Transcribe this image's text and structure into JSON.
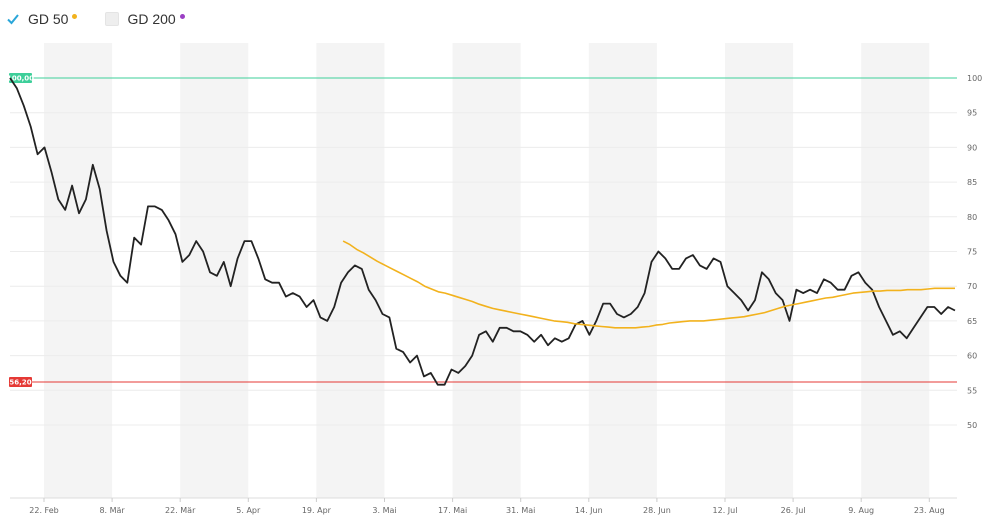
{
  "legend": {
    "items": [
      {
        "label": "GD 50",
        "checked": true,
        "dot_color": "#f2b21d"
      },
      {
        "label": "GD 200",
        "checked": false,
        "dot_color": "#9b3fc4"
      }
    ],
    "check_color": "#2aa6d9"
  },
  "chart_data": {
    "type": "line",
    "ylim": [
      40,
      107
    ],
    "y_ticks": [
      50,
      55,
      60,
      65,
      70,
      75,
      80,
      85,
      90,
      95,
      100
    ],
    "x_tick_labels": [
      "22. Feb",
      "8. Mär",
      "22. Mär",
      "5. Apr",
      "19. Apr",
      "3. Mai",
      "17. Mai",
      "31. Mai",
      "14. Jun",
      "28. Jun",
      "12. Jul",
      "26. Jul",
      "9. Aug",
      "23. Aug"
    ],
    "reference_lines": [
      {
        "value": 100,
        "label": "100,00",
        "color": "#3ecf9a"
      },
      {
        "value": 56.2,
        "label": "56,20",
        "color": "#e53935"
      }
    ],
    "series": [
      {
        "color": "#222222",
        "values": [
          100,
          98.5,
          96,
          93,
          89,
          90,
          86.5,
          82.5,
          81,
          84.5,
          80.5,
          82.5,
          87.5,
          84,
          78,
          73.5,
          71.5,
          70.5,
          77,
          76,
          81.5,
          81.5,
          81,
          79.5,
          77.5,
          73.5,
          74.5,
          76.5,
          75,
          72,
          71.5,
          73.5,
          70,
          74,
          76.5,
          76.5,
          74,
          71,
          70.5,
          70.5,
          68.5,
          69,
          68.5,
          67,
          68,
          65.5,
          65,
          67,
          70.5,
          72,
          73,
          72.5,
          69.5,
          68,
          66,
          65.5,
          61,
          60.5,
          59,
          60,
          57,
          57.5,
          55.8,
          55.8,
          58,
          57.5,
          58.5,
          60,
          63,
          63.5,
          62,
          64,
          64,
          63.5,
          63.5,
          63,
          62,
          63,
          61.5,
          62.5,
          62,
          62.5,
          64.5,
          65,
          63,
          65,
          67.5,
          67.5,
          66,
          65.5,
          66,
          67,
          69,
          73.5,
          75,
          74,
          72.5,
          72.5,
          74,
          74.5,
          73,
          72.5,
          74,
          73.5,
          70,
          69,
          68,
          66.5,
          68,
          72,
          71,
          69,
          68,
          65,
          69.5,
          69,
          69.5,
          69,
          71,
          70.5,
          69.5,
          69.5,
          71.5,
          72,
          70.5,
          69.5,
          67,
          65,
          63,
          63.5,
          62.5,
          64,
          65.5,
          67,
          67,
          66,
          67,
          66.5
        ]
      },
      {
        "name": "GD 50",
        "color": "#f2b21d",
        "values": [
          null,
          null,
          null,
          null,
          null,
          null,
          null,
          null,
          null,
          null,
          null,
          null,
          null,
          null,
          null,
          null,
          null,
          null,
          null,
          null,
          null,
          null,
          null,
          null,
          null,
          null,
          null,
          null,
          null,
          null,
          null,
          null,
          null,
          null,
          null,
          null,
          null,
          null,
          null,
          null,
          null,
          null,
          null,
          null,
          null,
          null,
          null,
          null,
          null,
          76.5,
          76,
          75.3,
          74.8,
          74.2,
          73.6,
          73.1,
          72.6,
          72.1,
          71.6,
          71.1,
          70.6,
          70,
          69.6,
          69.2,
          69,
          68.7,
          68.4,
          68.1,
          67.8,
          67.4,
          67.1,
          66.8,
          66.6,
          66.4,
          66.2,
          66,
          65.8,
          65.6,
          65.4,
          65.2,
          65,
          64.9,
          64.8,
          64.6,
          64.5,
          64.4,
          64.3,
          64.2,
          64.1,
          64,
          64,
          64,
          64,
          64.1,
          64.2,
          64.4,
          64.5,
          64.7,
          64.8,
          64.9,
          65,
          65,
          65,
          65.1,
          65.2,
          65.3,
          65.4,
          65.5,
          65.6,
          65.8,
          66,
          66.2,
          66.5,
          66.8,
          67.1,
          67.3,
          67.5,
          67.7,
          67.9,
          68.1,
          68.3,
          68.4,
          68.6,
          68.8,
          69,
          69.1,
          69.2,
          69.3,
          69.3,
          69.4,
          69.4,
          69.4,
          69.5,
          69.5,
          69.5,
          69.6,
          69.7,
          69.7,
          69.7,
          69.7
        ]
      }
    ],
    "grid": true
  }
}
